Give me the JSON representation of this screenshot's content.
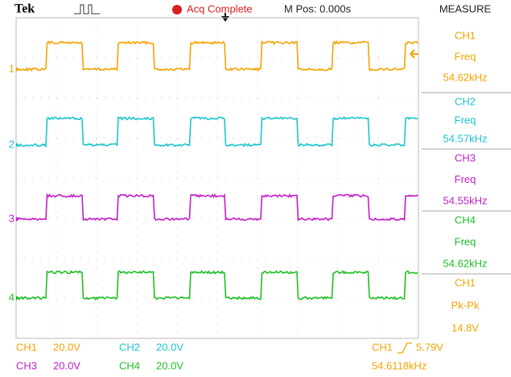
{
  "header": {
    "brand": "Tek",
    "status": "Acq Complete",
    "position": "M Pos: 0.000s",
    "menu_title": "MEASURE"
  },
  "channels": [
    {
      "label": "1",
      "color": "#f5a300"
    },
    {
      "label": "2",
      "color": "#1cc4cf"
    },
    {
      "label": "3",
      "color": "#c21ec8"
    },
    {
      "label": "4",
      "color": "#1fbf25"
    }
  ],
  "measurements": [
    {
      "channel": "CH1",
      "type": "Freq",
      "value": "54.62kHz",
      "color": "#f5a300"
    },
    {
      "channel": "CH2",
      "type": "Freq",
      "value": "54.57kHz",
      "color": "#1cc4cf"
    },
    {
      "channel": "CH3",
      "type": "Freq",
      "value": "54.55kHz",
      "color": "#c21ec8"
    },
    {
      "channel": "CH4",
      "type": "Freq",
      "value": "54.62kHz",
      "color": "#1fbf25"
    },
    {
      "channel": "CH1",
      "type": "Pk-Pk",
      "value": "14.8V",
      "color": "#f5a300"
    }
  ],
  "footer": {
    "scales": [
      {
        "channel": "CH1",
        "scale": "20.0V",
        "color": "#f5a300"
      },
      {
        "channel": "CH2",
        "scale": "20.0V",
        "color": "#1cc4cf"
      },
      {
        "channel": "CH3",
        "scale": "20.0V",
        "color": "#c21ec8"
      },
      {
        "channel": "CH4",
        "scale": "20.0V",
        "color": "#1fbf25"
      }
    ],
    "trigger_source": "CH1",
    "trigger_level": "5.79V",
    "frequency": "54.6118kHz",
    "trigger_color": "#f5a300"
  }
}
